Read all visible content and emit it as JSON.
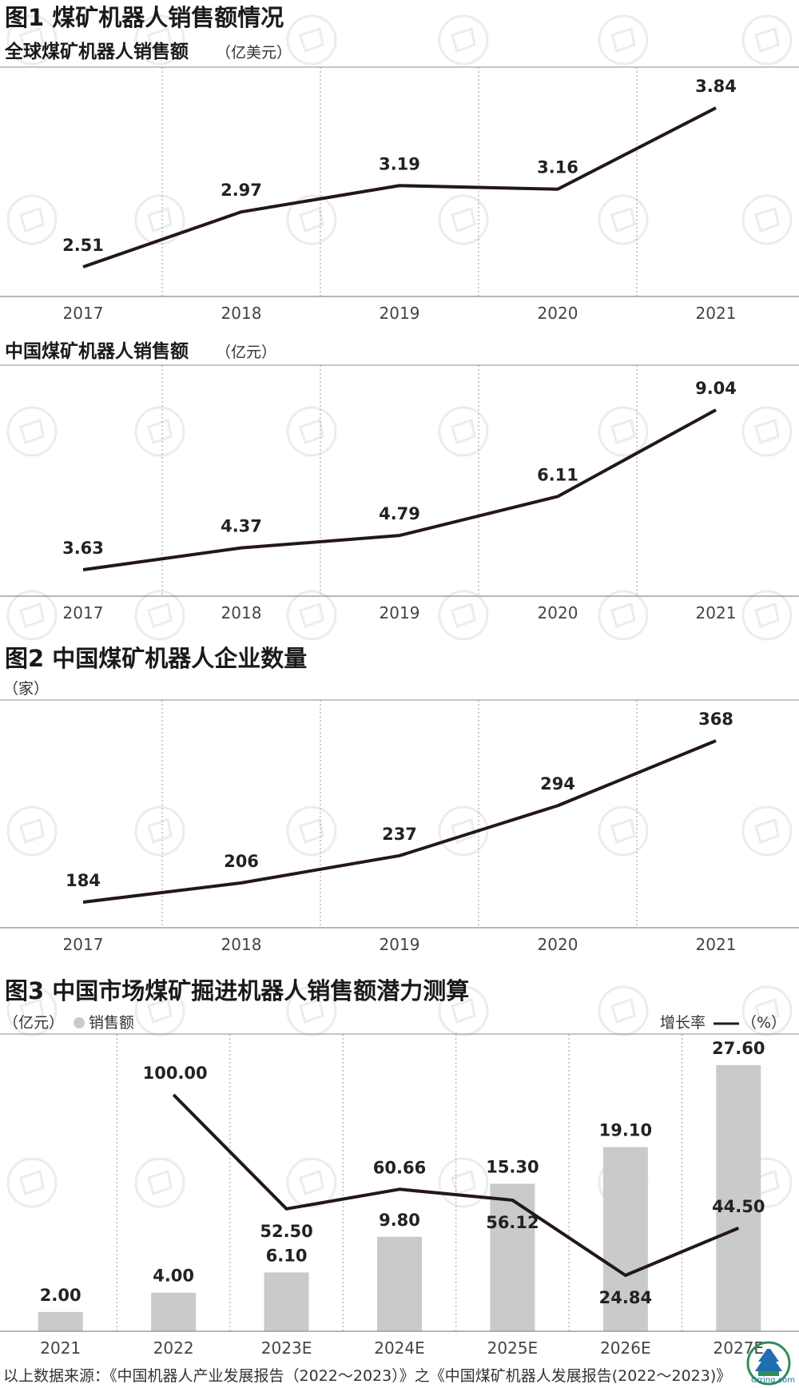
{
  "colors": {
    "line": "#231815",
    "bar": "#c9caca",
    "grid": "#9a9a9a",
    "axis": "#8c8c8c",
    "text": "#1a1a1a"
  },
  "watermark_icon": "circle-logo-watermark-icon",
  "corner_logo_icon": "pagoda-logo-icon",
  "corner_logo_text": "Crring.com",
  "fig1": {
    "title": "图1 煤矿机器人销售额情况"
  },
  "fig2": {
    "title": "图2 中国煤矿机器人企业数量"
  },
  "fig3": {
    "title": "图3 中国市场煤矿掘进机器人销售额潜力测算"
  },
  "source": "以上数据来源：《中国机器人产业发展报告（2022～2023）》之《中国煤矿机器人发展报告(2022～2023)》",
  "chart_data": [
    {
      "type": "line",
      "title": "全球煤矿机器人销售额",
      "unit": "（亿美元）",
      "x": [
        "2017",
        "2018",
        "2019",
        "2020",
        "2021"
      ],
      "values": [
        2.51,
        2.97,
        3.19,
        3.16,
        3.84
      ],
      "labels": [
        "2.51",
        "2.97",
        "3.19",
        "3.16",
        "3.84"
      ],
      "grid": true
    },
    {
      "type": "line",
      "title": "中国煤矿机器人销售额",
      "unit": "（亿元）",
      "x": [
        "2017",
        "2018",
        "2019",
        "2020",
        "2021"
      ],
      "values": [
        3.63,
        4.37,
        4.79,
        6.11,
        9.04
      ],
      "labels": [
        "3.63",
        "4.37",
        "4.79",
        "6.11",
        "9.04"
      ],
      "grid": true
    },
    {
      "type": "line",
      "title": "",
      "unit": "（家）",
      "x": [
        "2017",
        "2018",
        "2019",
        "2020",
        "2021"
      ],
      "values": [
        184,
        206,
        237,
        294,
        368
      ],
      "labels": [
        "184",
        "206",
        "237",
        "294",
        "368"
      ],
      "grid": true
    },
    {
      "type": "bar",
      "title": "",
      "unit_left": "（亿元）",
      "legend_bar": "销售额",
      "legend_line_label": "增长率",
      "unit_right": "（%）",
      "categories": [
        "2021",
        "2022",
        "2023E",
        "2024E",
        "2025E",
        "2026E",
        "2027E"
      ],
      "series": [
        {
          "name": "销售额",
          "type": "bar",
          "values": [
            2.0,
            4.0,
            6.1,
            9.8,
            15.3,
            19.1,
            27.6
          ],
          "labels": [
            "2.00",
            "4.00",
            "6.10",
            "9.80",
            "15.30",
            "19.10",
            "27.60"
          ]
        },
        {
          "name": "增长率",
          "type": "line",
          "values": [
            null,
            100.0,
            52.5,
            60.66,
            56.12,
            24.84,
            44.5
          ],
          "labels": [
            "",
            "100.00",
            "52.50",
            "60.66",
            "56.12",
            "24.84",
            "44.50"
          ]
        }
      ],
      "grid": true
    }
  ]
}
